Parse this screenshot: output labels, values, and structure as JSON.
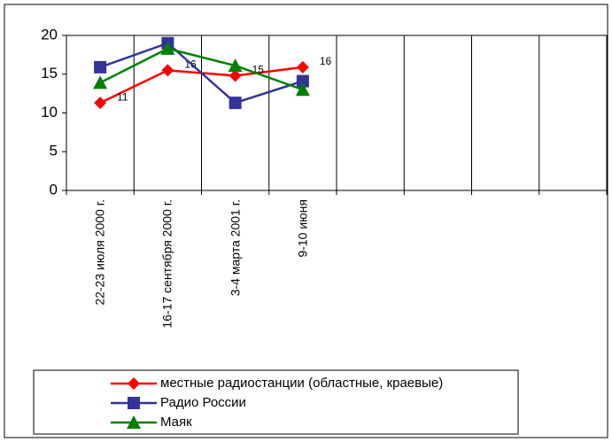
{
  "chart_data": {
    "type": "line",
    "categories": [
      "22-23 июля 2000 г.",
      "16-17 сентября 2000 г.",
      "3-4 марта 2001 г.",
      "9-10 июня",
      null,
      null,
      null,
      null
    ],
    "series": [
      {
        "name": "местные радиостанции (областные, краевые)",
        "color": "#ff0000",
        "marker": "diamond",
        "values": [
          11.3,
          15.5,
          14.8,
          15.9,
          null,
          null,
          null,
          null
        ],
        "value_labels": [
          "11",
          "16",
          "15",
          "16",
          null,
          null,
          null,
          null
        ]
      },
      {
        "name": "Радио России",
        "color": "#333399",
        "marker": "square",
        "values": [
          15.9,
          19,
          11.3,
          14.1,
          null,
          null,
          null,
          null
        ]
      },
      {
        "name": "Маяк",
        "color": "#008000",
        "marker": "triangle",
        "values": [
          13.9,
          18.3,
          16.1,
          13.0,
          null,
          null,
          null,
          null
        ]
      }
    ],
    "ylim": [
      0,
      20
    ],
    "yticks": [
      0,
      5,
      10,
      15,
      20
    ],
    "grid": "vertical",
    "legend": "bottom"
  }
}
